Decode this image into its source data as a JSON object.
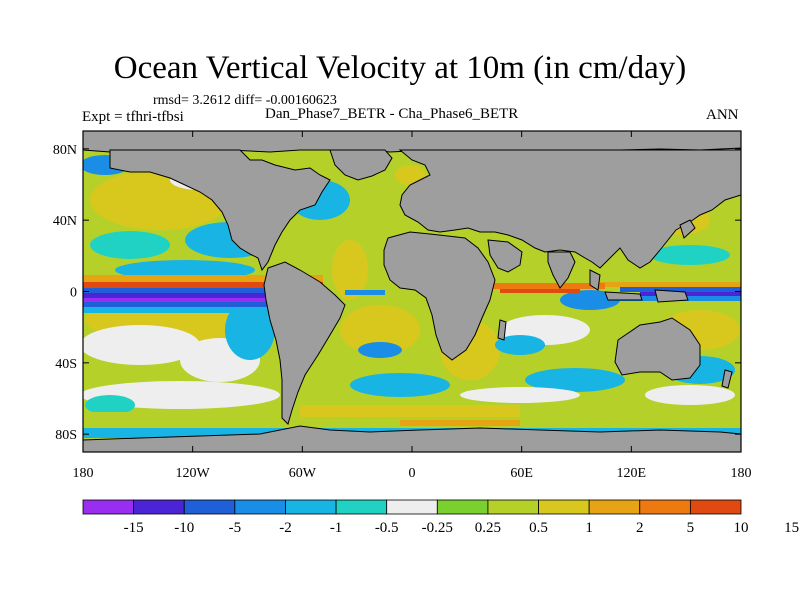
{
  "title": "Ocean Vertical Velocity at 10m (in cm/day)",
  "stats": "rmsd= 3.2612 diff= -0.00160623",
  "expt": "Expt = tfhri-tfbsi",
  "diff_label": "Dan_Phase7_BETR - Cha_Phase6_BETR",
  "season": "ANN",
  "lat_ticks": [
    {
      "label": "80N",
      "lat": 80
    },
    {
      "label": "40N",
      "lat": 40
    },
    {
      "label": "0",
      "lat": 0
    },
    {
      "label": "40S",
      "lat": -40
    },
    {
      "label": "80S",
      "lat": -80
    }
  ],
  "lon_ticks": [
    {
      "label": "180",
      "lon": -180
    },
    {
      "label": "120W",
      "lon": -120
    },
    {
      "label": "60W",
      "lon": -60
    },
    {
      "label": "0",
      "lon": 0
    },
    {
      "label": "60E",
      "lon": 60
    },
    {
      "label": "120E",
      "lon": 120
    },
    {
      "label": "180",
      "lon": 180
    }
  ],
  "colorbar": {
    "colors": [
      "#9a2ef0",
      "#4b24d6",
      "#1f5fd8",
      "#1a8ee6",
      "#18b4e4",
      "#20d2c4",
      "#eeeeee",
      "#7ad02e",
      "#b6d02a",
      "#d8c81e",
      "#e6a414",
      "#ec7a10",
      "#e04a10"
    ],
    "labels": [
      "-15",
      "-10",
      "-5",
      "-2",
      "-1",
      "-0.5",
      "-0.25",
      "0.25",
      "0.5",
      "1",
      "2",
      "5",
      "10",
      "15"
    ]
  },
  "colors": {
    "land": "#9e9e9e",
    "frame": "#000000",
    "coast": "#000000"
  }
}
